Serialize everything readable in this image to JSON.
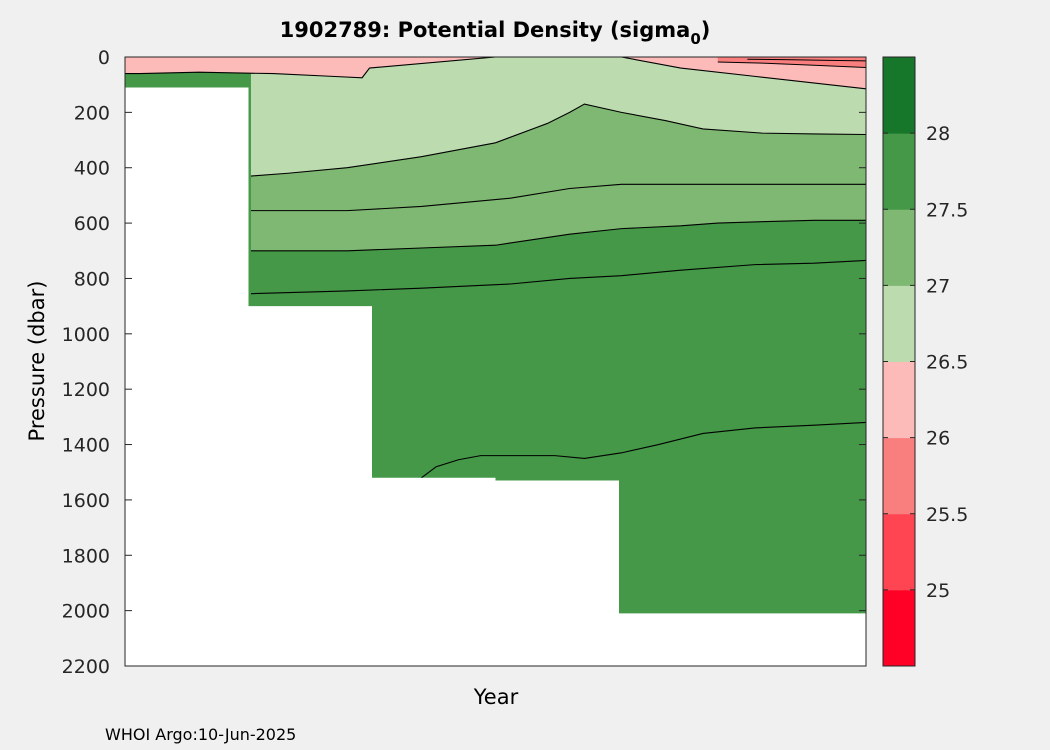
{
  "chart_data": {
    "type": "heatmap",
    "title_main": "1902789: Potential Density (sigma",
    "title_sub": "0",
    "title_close": ")",
    "xlabel": "Year",
    "ylabel": "Pressure (dbar)",
    "ylim": [
      0,
      2200
    ],
    "y_reversed": true,
    "yticks": [
      0,
      200,
      400,
      600,
      800,
      1000,
      1200,
      1400,
      1600,
      1800,
      2000,
      2200
    ],
    "x_ticks": [],
    "profile_columns": 6,
    "profile_max_depth": [
      110,
      900,
      1520,
      1530,
      2010,
      2010
    ],
    "isopycnals": [
      {
        "level": 26.5,
        "depth_x": [
          0,
          0.02,
          0.1,
          0.2,
          0.28,
          0.32,
          0.33,
          0.5,
          0.6,
          0.68,
          0.78,
          0.88,
          1.0
        ],
        "depth_y": [
          60,
          60,
          55,
          60,
          70,
          75,
          40,
          -10,
          -10,
          -10,
          -10,
          -10,
          -10
        ]
      },
      {
        "level": 26.5,
        "depth_x": [
          0.67,
          0.75,
          0.85,
          1.0
        ],
        "depth_y": [
          -10,
          40,
          70,
          115
        ]
      },
      {
        "level": 27.0,
        "depth_x": [
          0.17,
          0.22,
          0.3,
          0.4,
          0.5,
          0.57,
          0.6,
          0.62,
          0.67,
          0.73,
          0.78,
          0.86,
          0.93,
          1.0
        ],
        "depth_y": [
          430,
          420,
          400,
          360,
          310,
          240,
          200,
          170,
          200,
          230,
          260,
          275,
          278,
          280
        ]
      },
      {
        "level": 27.5,
        "depth_x": [
          0.17,
          0.3,
          0.4,
          0.52,
          0.6,
          0.67,
          0.72,
          0.8,
          0.9,
          1.0
        ],
        "depth_y": [
          555,
          555,
          540,
          510,
          475,
          460,
          460,
          460,
          460,
          460
        ]
      },
      {
        "level": 27.5,
        "depth_x": [
          0.17,
          0.3,
          0.4,
          0.5,
          0.55,
          0.6,
          0.67,
          0.75,
          0.8,
          0.86,
          0.93,
          1.0
        ],
        "depth_y": [
          700,
          700,
          690,
          680,
          660,
          640,
          620,
          610,
          600,
          595,
          590,
          590
        ]
      },
      {
        "level": 28.0,
        "depth_x": [
          0.17,
          0.3,
          0.4,
          0.52,
          0.6,
          0.67,
          0.75,
          0.85,
          0.93,
          1.0
        ],
        "depth_y": [
          855,
          845,
          835,
          820,
          800,
          790,
          770,
          750,
          745,
          735
        ]
      },
      {
        "level": 27.72,
        "depth_x": [
          0.4,
          0.42,
          0.45,
          0.48,
          0.52,
          0.58,
          0.62,
          0.67,
          0.72,
          0.78,
          0.85,
          0.93,
          1.0
        ],
        "depth_y": [
          1520,
          1480,
          1455,
          1440,
          1440,
          1440,
          1450,
          1430,
          1400,
          1360,
          1340,
          1330,
          1320
        ]
      }
    ],
    "colorbar": {
      "colors": [
        "#ff0027",
        "#ff4551",
        "#f97f7f",
        "#fcbbb8",
        "#bcdcb0",
        "#7fb872",
        "#449847",
        "#167629"
      ],
      "tick_labels": [
        "25",
        "25.5",
        "26",
        "26.5",
        "27",
        "27.5",
        "28"
      ],
      "tick_values": [
        25,
        25.5,
        26,
        26.5,
        27,
        27.5,
        28
      ],
      "min": 24.5,
      "max": 28.5
    }
  },
  "footer": {
    "credit": "WHOI Argo:10-Jun-2025"
  }
}
